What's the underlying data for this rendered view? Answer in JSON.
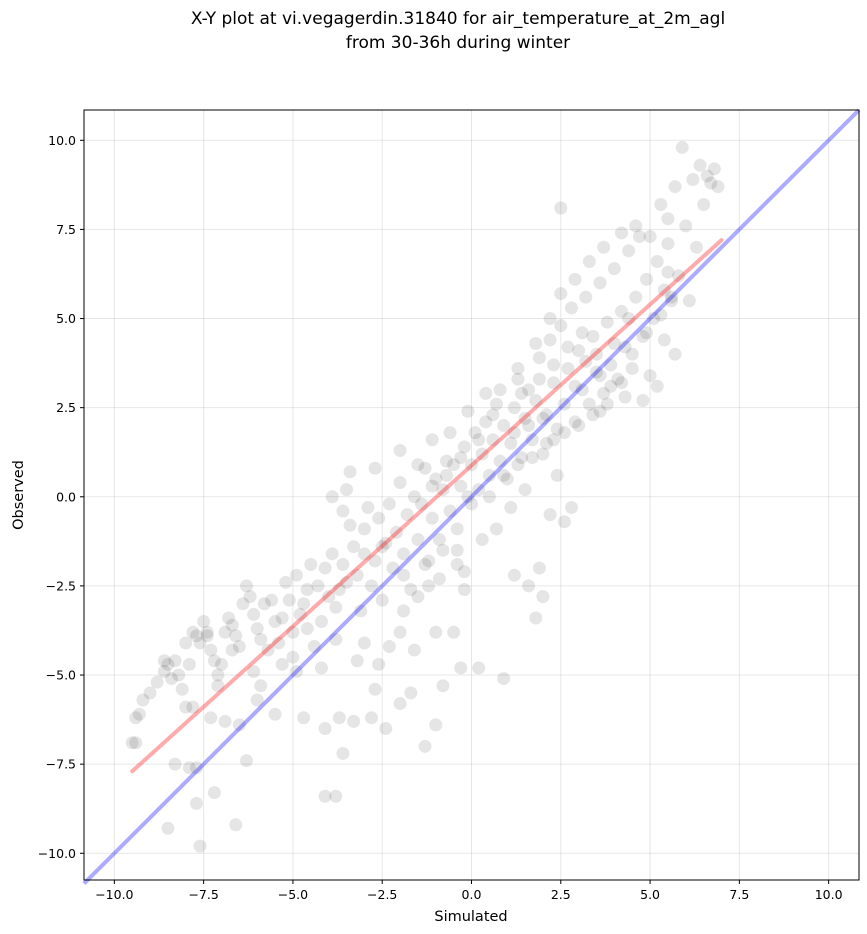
{
  "chart_data": {
    "type": "scatter",
    "title": "X-Y plot at vi.vegagerdin.31840 for air_temperature_at_2m_agl",
    "subtitle": "from 30-36h during winter",
    "xlabel": "Simulated",
    "ylabel": "Observed",
    "xlim": [
      -10.85,
      10.85
    ],
    "ylim": [
      -10.75,
      10.85
    ],
    "xticks": [
      -10.0,
      -7.5,
      -5.0,
      -2.5,
      0.0,
      2.5,
      5.0,
      7.5,
      10.0
    ],
    "yticks": [
      -10.0,
      -7.5,
      -5.0,
      -2.5,
      0.0,
      2.5,
      5.0,
      7.5,
      10.0
    ],
    "xtick_labels": [
      "−10.0",
      "−7.5",
      "−5.0",
      "−2.5",
      "0.0",
      "2.5",
      "5.0",
      "7.5",
      "10.0"
    ],
    "ytick_labels": [
      "−10.0",
      "−7.5",
      "−5.0",
      "−2.5",
      "0.0",
      "2.5",
      "5.0",
      "7.5",
      "10.0"
    ],
    "grid": true,
    "point_color": "#000000",
    "point_alpha": 0.1,
    "identity_line": {
      "color": "#0000ff",
      "from": [
        -10.85,
        -10.85
      ],
      "to": [
        10.85,
        10.85
      ]
    },
    "fit_line": {
      "color": "#ff0000",
      "from": [
        -9.5,
        -7.7
      ],
      "to": [
        7.0,
        7.2
      ]
    },
    "points": [
      [
        -9.5,
        -6.9
      ],
      [
        -9.4,
        -6.9
      ],
      [
        -9.4,
        -6.2
      ],
      [
        -9.3,
        -6.1
      ],
      [
        -9.2,
        -5.7
      ],
      [
        -9.0,
        -5.5
      ],
      [
        -8.8,
        -5.2
      ],
      [
        -8.6,
        -4.9
      ],
      [
        -8.5,
        -4.7
      ],
      [
        -8.3,
        -4.6
      ],
      [
        -8.4,
        -5.1
      ],
      [
        -8.2,
        -5.0
      ],
      [
        -8.1,
        -5.4
      ],
      [
        -8.0,
        -5.9
      ],
      [
        -7.9,
        -4.7
      ],
      [
        -7.8,
        -3.8
      ],
      [
        -7.7,
        -3.9
      ],
      [
        -7.6,
        -4.1
      ],
      [
        -7.5,
        -3.5
      ],
      [
        -7.4,
        -3.9
      ],
      [
        -7.3,
        -4.3
      ],
      [
        -7.2,
        -4.6
      ],
      [
        -7.1,
        -5.0
      ],
      [
        -7.0,
        -4.7
      ],
      [
        -6.9,
        -3.8
      ],
      [
        -6.8,
        -3.4
      ],
      [
        -6.7,
        -3.6
      ],
      [
        -6.6,
        -3.9
      ],
      [
        -6.5,
        -4.2
      ],
      [
        -6.4,
        -3.0
      ],
      [
        -6.3,
        -2.5
      ],
      [
        -6.2,
        -2.8
      ],
      [
        -6.1,
        -3.3
      ],
      [
        -6.0,
        -3.7
      ],
      [
        -5.9,
        -4.0
      ],
      [
        -5.8,
        -3.0
      ],
      [
        -5.6,
        -2.9
      ],
      [
        -5.5,
        -3.5
      ],
      [
        -5.4,
        -4.1
      ],
      [
        -5.3,
        -3.4
      ],
      [
        -5.2,
        -2.4
      ],
      [
        -5.1,
        -2.9
      ],
      [
        -5.0,
        -3.8
      ],
      [
        -4.9,
        -2.2
      ],
      [
        -4.8,
        -3.3
      ],
      [
        -4.7,
        -3.0
      ],
      [
        -4.6,
        -2.6
      ],
      [
        -4.5,
        -1.9
      ],
      [
        -4.4,
        -4.2
      ],
      [
        -4.3,
        -2.5
      ],
      [
        -4.2,
        -3.5
      ],
      [
        -4.1,
        -2.0
      ],
      [
        -4.0,
        -2.8
      ],
      [
        -3.9,
        -1.6
      ],
      [
        -3.8,
        -3.1
      ],
      [
        -3.7,
        -2.6
      ],
      [
        -3.6,
        -1.9
      ],
      [
        -3.5,
        -2.4
      ],
      [
        -3.4,
        -0.8
      ],
      [
        -3.3,
        -1.4
      ],
      [
        -3.2,
        -2.2
      ],
      [
        -3.1,
        -3.2
      ],
      [
        -3.0,
        -1.6
      ],
      [
        -2.9,
        -0.3
      ],
      [
        -2.8,
        -2.5
      ],
      [
        -2.7,
        -1.8
      ],
      [
        -2.6,
        -0.6
      ],
      [
        -2.5,
        -2.9
      ],
      [
        -2.4,
        -1.3
      ],
      [
        -2.3,
        -0.2
      ],
      [
        -2.2,
        -2.0
      ],
      [
        -2.1,
        -1.0
      ],
      [
        -2.0,
        0.4
      ],
      [
        -1.9,
        -1.6
      ],
      [
        -1.8,
        -0.5
      ],
      [
        -1.7,
        -2.6
      ],
      [
        -1.6,
        0.0
      ],
      [
        -1.5,
        -1.2
      ],
      [
        -1.4,
        -0.2
      ],
      [
        -1.3,
        0.8
      ],
      [
        -1.2,
        -1.8
      ],
      [
        -1.1,
        -0.6
      ],
      [
        -1.0,
        0.5
      ],
      [
        -0.9,
        -1.2
      ],
      [
        -0.8,
        0.2
      ],
      [
        -0.7,
        1.0
      ],
      [
        -0.6,
        -0.4
      ],
      [
        -0.5,
        0.9
      ],
      [
        -0.4,
        -1.5
      ],
      [
        -0.3,
        0.3
      ],
      [
        -0.2,
        1.4
      ],
      [
        -0.1,
        0.0
      ],
      [
        0.0,
        0.9
      ],
      [
        0.1,
        1.8
      ],
      [
        0.2,
        0.2
      ],
      [
        0.3,
        1.2
      ],
      [
        0.4,
        2.1
      ],
      [
        0.5,
        0.6
      ],
      [
        0.6,
        1.6
      ],
      [
        0.7,
        2.6
      ],
      [
        0.8,
        1.0
      ],
      [
        0.9,
        2.0
      ],
      [
        1.0,
        0.5
      ],
      [
        1.1,
        1.5
      ],
      [
        1.2,
        2.5
      ],
      [
        1.3,
        3.3
      ],
      [
        1.4,
        1.1
      ],
      [
        1.5,
        2.2
      ],
      [
        1.6,
        3.0
      ],
      [
        1.7,
        1.6
      ],
      [
        1.8,
        2.7
      ],
      [
        1.9,
        3.9
      ],
      [
        2.0,
        1.2
      ],
      [
        2.1,
        2.3
      ],
      [
        2.2,
        4.4
      ],
      [
        2.3,
        3.2
      ],
      [
        2.4,
        1.9
      ],
      [
        2.5,
        4.8
      ],
      [
        2.6,
        2.6
      ],
      [
        2.7,
        3.6
      ],
      [
        2.8,
        5.3
      ],
      [
        2.9,
        2.1
      ],
      [
        3.0,
        4.1
      ],
      [
        3.1,
        3.0
      ],
      [
        3.2,
        5.6
      ],
      [
        3.3,
        2.6
      ],
      [
        3.4,
        4.5
      ],
      [
        3.5,
        3.5
      ],
      [
        3.6,
        6.0
      ],
      [
        3.7,
        2.9
      ],
      [
        3.8,
        4.9
      ],
      [
        3.9,
        3.7
      ],
      [
        4.0,
        6.4
      ],
      [
        4.1,
        3.3
      ],
      [
        4.2,
        5.2
      ],
      [
        4.3,
        4.2
      ],
      [
        4.4,
        6.9
      ],
      [
        4.5,
        3.6
      ],
      [
        4.6,
        5.6
      ],
      [
        4.7,
        7.3
      ],
      [
        4.8,
        4.5
      ],
      [
        4.9,
        6.1
      ],
      [
        5.0,
        3.4
      ],
      [
        5.1,
        5.0
      ],
      [
        5.2,
        6.6
      ],
      [
        5.3,
        8.2
      ],
      [
        5.4,
        4.4
      ],
      [
        5.5,
        7.1
      ],
      [
        5.6,
        5.6
      ],
      [
        5.7,
        8.7
      ],
      [
        5.8,
        6.2
      ],
      [
        5.9,
        9.8
      ],
      [
        6.0,
        7.6
      ],
      [
        6.1,
        5.5
      ],
      [
        6.2,
        8.9
      ],
      [
        6.3,
        7.0
      ],
      [
        6.4,
        9.3
      ],
      [
        6.5,
        8.2
      ],
      [
        6.6,
        9.0
      ],
      [
        6.7,
        8.8
      ],
      [
        6.9,
        8.7
      ],
      [
        6.8,
        9.2
      ],
      [
        2.5,
        8.1
      ],
      [
        5.5,
        6.3
      ],
      [
        5.7,
        4.0
      ],
      [
        5.2,
        3.1
      ],
      [
        4.8,
        2.7
      ],
      [
        4.3,
        2.8
      ],
      [
        3.9,
        3.1
      ],
      [
        3.6,
        2.4
      ],
      [
        -8.5,
        -9.3
      ],
      [
        -7.7,
        -8.6
      ],
      [
        -7.6,
        -9.8
      ],
      [
        -7.2,
        -8.3
      ],
      [
        -6.6,
        -9.2
      ],
      [
        -6.9,
        -6.3
      ],
      [
        -6.3,
        -7.4
      ],
      [
        -6.5,
        -6.4
      ],
      [
        -7.3,
        -6.2
      ],
      [
        -7.9,
        -7.6
      ],
      [
        -7.7,
        -7.6
      ],
      [
        -8.3,
        -7.5
      ],
      [
        -5.5,
        -6.1
      ],
      [
        -4.7,
        -6.2
      ],
      [
        -4.1,
        -6.5
      ],
      [
        -3.6,
        -7.2
      ],
      [
        -3.7,
        -6.2
      ],
      [
        -3.3,
        -6.3
      ],
      [
        -2.8,
        -6.2
      ],
      [
        -2.4,
        -6.5
      ],
      [
        -4.1,
        -8.4
      ],
      [
        -3.8,
        -8.4
      ],
      [
        -2.0,
        -5.8
      ],
      [
        -1.7,
        -5.5
      ],
      [
        -1.3,
        -7.0
      ],
      [
        -1.0,
        -6.4
      ],
      [
        -0.8,
        -5.3
      ],
      [
        -0.3,
        -4.8
      ],
      [
        0.2,
        -4.8
      ],
      [
        0.9,
        -5.1
      ],
      [
        -2.6,
        -4.7
      ],
      [
        -3.0,
        -4.1
      ],
      [
        -2.0,
        -3.8
      ],
      [
        -1.6,
        -4.3
      ],
      [
        -1.0,
        -3.8
      ],
      [
        -0.5,
        -3.8
      ],
      [
        -0.2,
        -2.6
      ],
      [
        0.3,
        -1.2
      ],
      [
        1.2,
        -2.2
      ],
      [
        1.6,
        -2.5
      ],
      [
        1.9,
        -2.0
      ],
      [
        2.0,
        -2.8
      ],
      [
        2.2,
        -0.5
      ],
      [
        2.6,
        -0.7
      ],
      [
        2.8,
        -0.3
      ],
      [
        1.8,
        -3.4
      ],
      [
        0.7,
        -0.9
      ],
      [
        1.5,
        0.2
      ],
      [
        1.1,
        -0.3
      ],
      [
        2.4,
        0.6
      ],
      [
        -0.9,
        -2.3
      ],
      [
        -0.4,
        -1.9
      ],
      [
        -0.2,
        -2.1
      ],
      [
        -1.3,
        -1.9
      ],
      [
        -1.9,
        -2.2
      ],
      [
        -2.5,
        -1.4
      ],
      [
        -3.0,
        -0.9
      ],
      [
        -3.6,
        -0.4
      ],
      [
        -3.9,
        0.0
      ],
      [
        -3.4,
        0.7
      ],
      [
        -3.5,
        0.2
      ],
      [
        -2.7,
        0.8
      ],
      [
        -2.0,
        1.3
      ],
      [
        -1.5,
        0.9
      ],
      [
        -1.1,
        1.6
      ],
      [
        -0.6,
        1.8
      ],
      [
        -0.1,
        2.4
      ],
      [
        0.4,
        2.9
      ],
      [
        0.8,
        3.0
      ],
      [
        1.3,
        3.6
      ],
      [
        1.8,
        4.3
      ],
      [
        2.2,
        5.0
      ],
      [
        2.5,
        5.7
      ],
      [
        2.9,
        6.1
      ],
      [
        3.3,
        6.6
      ],
      [
        3.7,
        7.0
      ],
      [
        4.2,
        7.4
      ],
      [
        4.6,
        7.6
      ],
      [
        5.0,
        7.3
      ],
      [
        5.5,
        7.8
      ],
      [
        -6.0,
        -5.7
      ],
      [
        -5.7,
        -4.3
      ],
      [
        -5.0,
        -4.5
      ],
      [
        -4.6,
        -3.7
      ],
      [
        -4.2,
        -4.8
      ],
      [
        -3.8,
        -4.0
      ],
      [
        -3.2,
        -4.6
      ],
      [
        -2.7,
        -5.4
      ],
      [
        -2.3,
        -4.2
      ],
      [
        -1.9,
        -3.2
      ],
      [
        -1.5,
        -2.8
      ],
      [
        -1.2,
        -2.5
      ],
      [
        -0.8,
        -1.5
      ],
      [
        -0.4,
        -0.9
      ],
      [
        0.0,
        -0.2
      ],
      [
        0.5,
        0.0
      ],
      [
        0.9,
        0.6
      ],
      [
        1.3,
        0.9
      ],
      [
        1.7,
        1.1
      ],
      [
        2.1,
        1.5
      ],
      [
        2.6,
        1.8
      ],
      [
        3.0,
        2.0
      ],
      [
        3.4,
        2.3
      ],
      [
        3.8,
        2.6
      ],
      [
        4.2,
        3.2
      ],
      [
        4.5,
        4.0
      ],
      [
        4.9,
        4.6
      ],
      [
        5.3,
        5.1
      ],
      [
        5.6,
        5.5
      ],
      [
        5.4,
        5.8
      ],
      [
        1.2,
        1.8
      ],
      [
        1.6,
        2.0
      ],
      [
        2.0,
        2.2
      ],
      [
        2.3,
        1.6
      ],
      [
        1.4,
        2.9
      ],
      [
        0.6,
        2.3
      ],
      [
        0.2,
        1.6
      ],
      [
        -0.3,
        1.1
      ],
      [
        -0.7,
        0.6
      ],
      [
        -1.1,
        0.3
      ],
      [
        2.7,
        4.2
      ],
      [
        3.1,
        4.6
      ],
      [
        3.5,
        4.0
      ],
      [
        2.9,
        3.1
      ],
      [
        2.3,
        3.7
      ],
      [
        1.9,
        3.3
      ],
      [
        3.2,
        3.8
      ],
      [
        3.6,
        3.4
      ],
      [
        4.0,
        4.3
      ],
      [
        4.4,
        5.0
      ],
      [
        -7.1,
        -5.3
      ],
      [
        -7.8,
        -5.9
      ],
      [
        -8.0,
        -4.1
      ],
      [
        -8.6,
        -4.6
      ],
      [
        -7.4,
        -3.8
      ],
      [
        -6.7,
        -4.3
      ],
      [
        -6.1,
        -4.9
      ],
      [
        -5.9,
        -5.3
      ],
      [
        -5.3,
        -4.7
      ],
      [
        -4.9,
        -4.9
      ]
    ]
  }
}
